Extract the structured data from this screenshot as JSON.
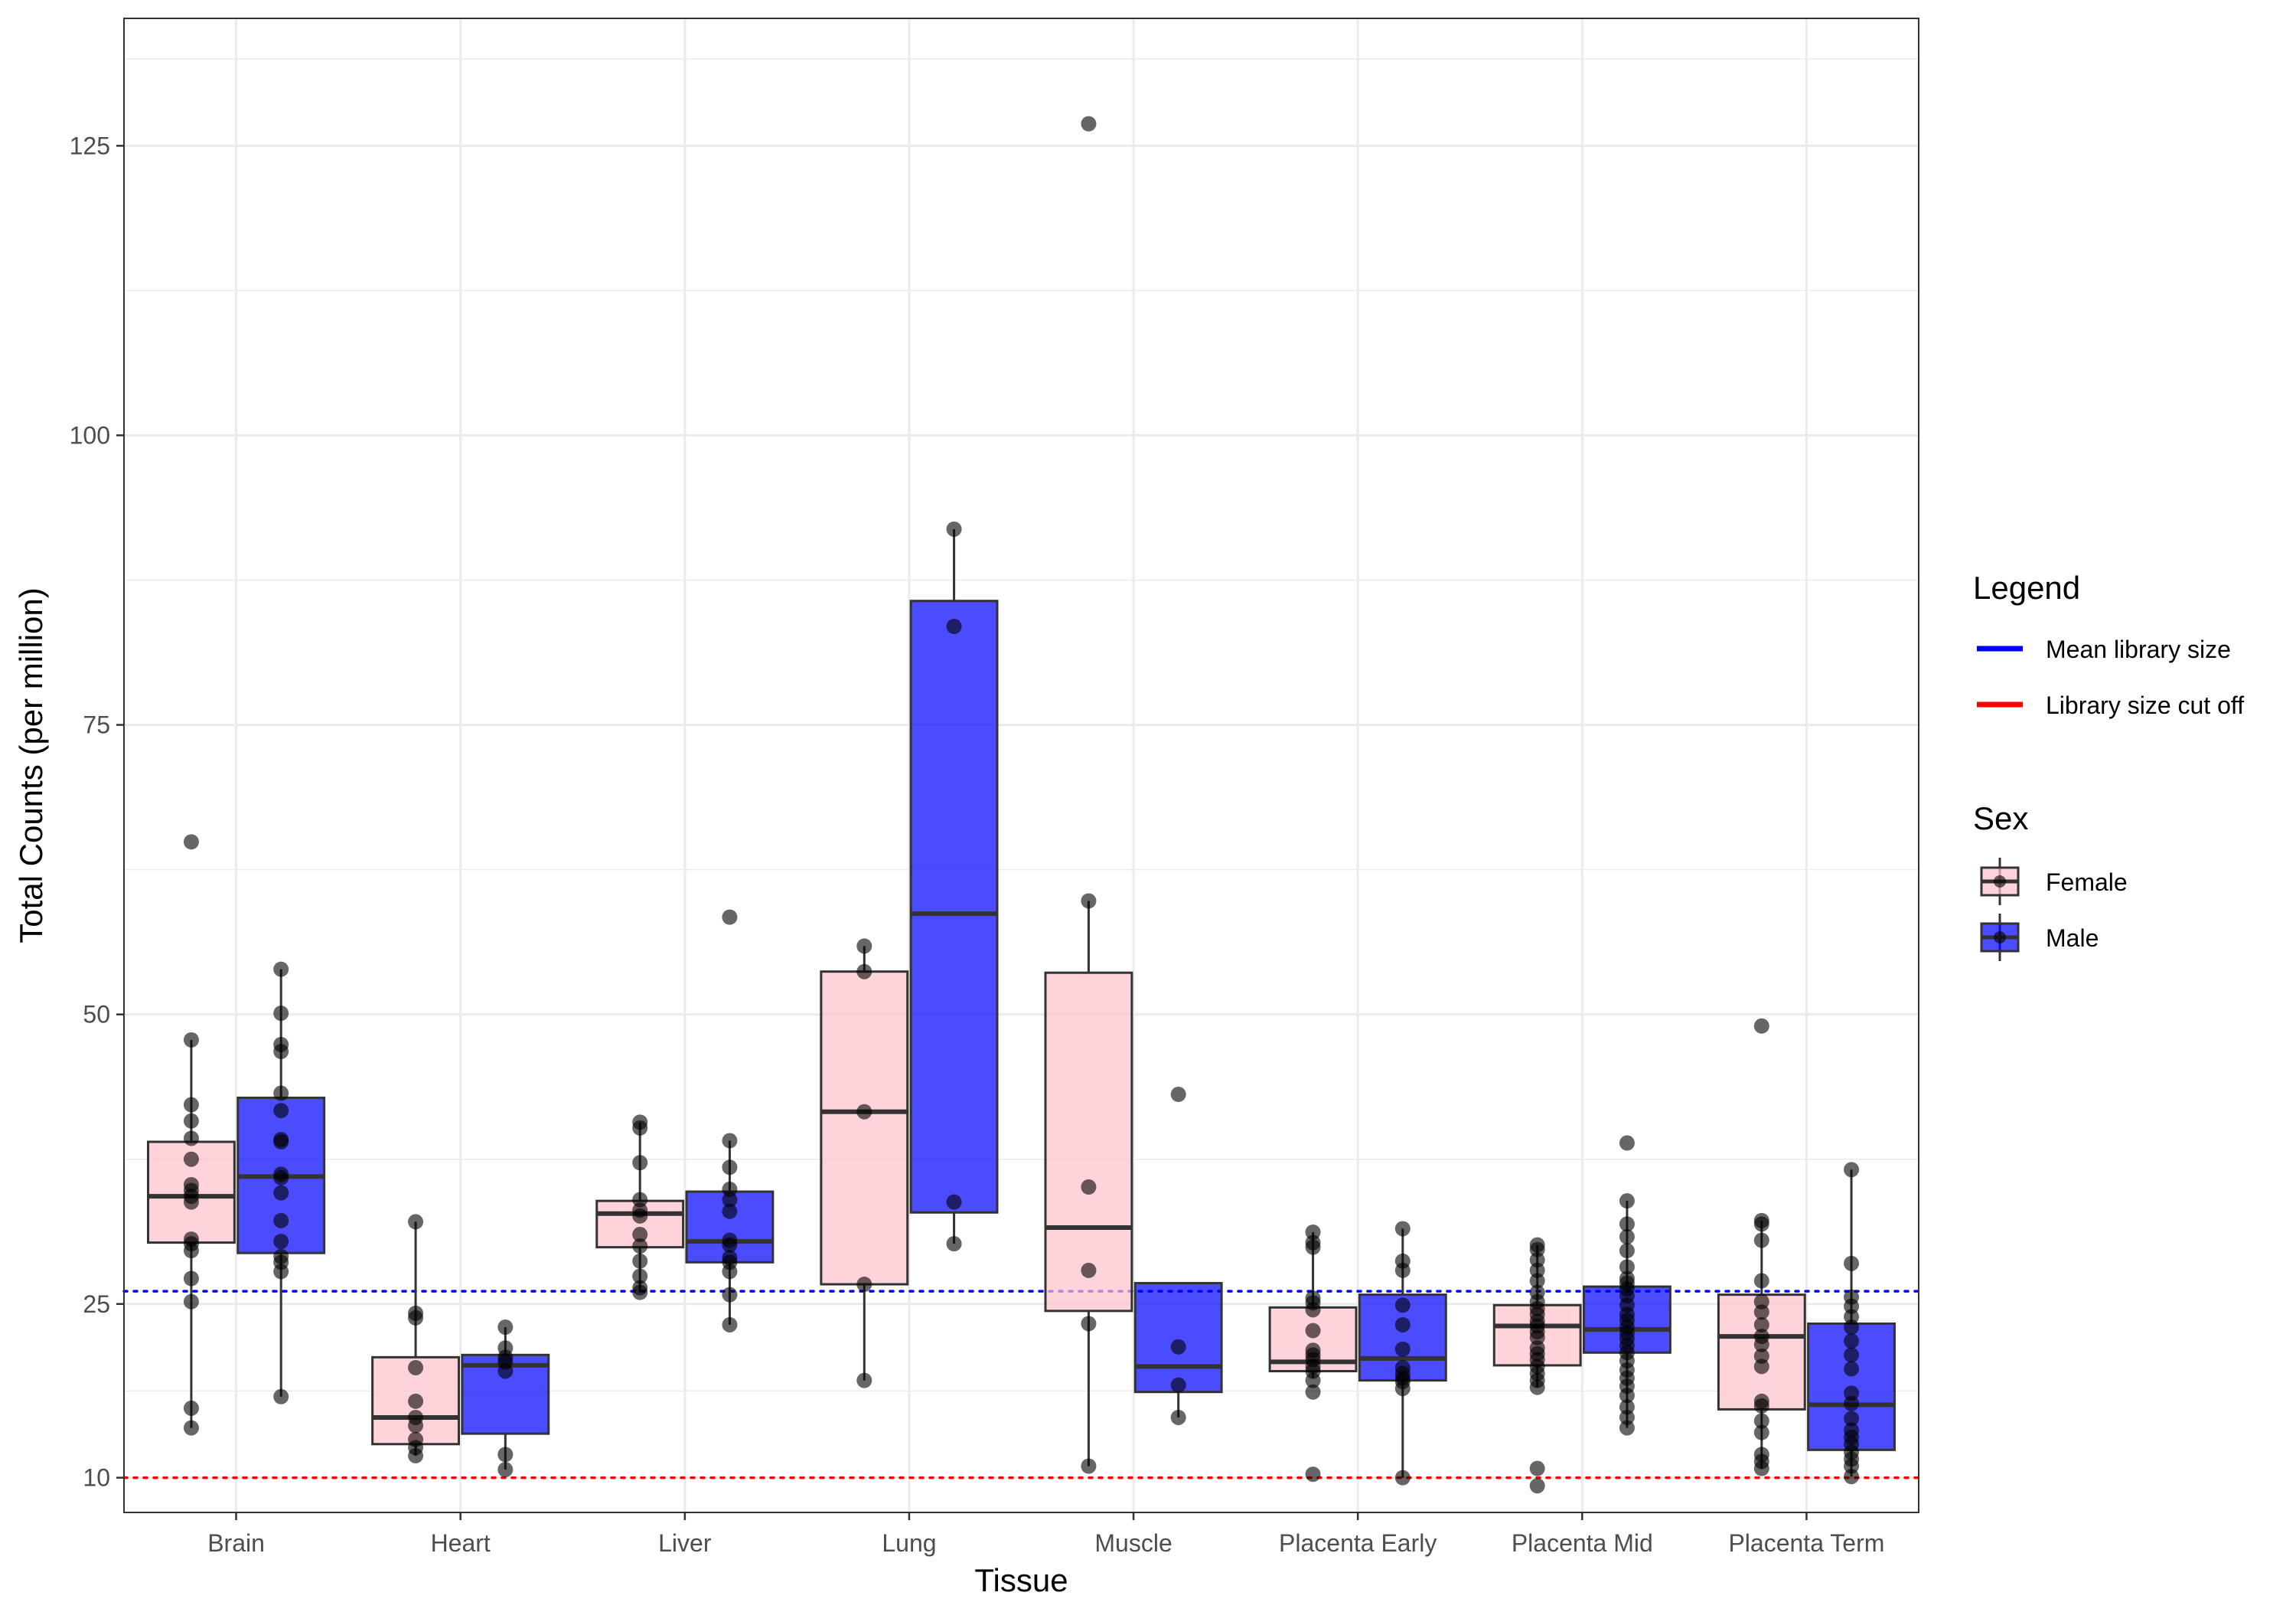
{
  "chart_data": {
    "type": "box",
    "title": "",
    "xlabel": "Tissue",
    "ylabel": "Total Counts (per million)",
    "ylim": [
      7,
      136
    ],
    "y_scale": "linear",
    "y_ticks": [
      10,
      25,
      50,
      75,
      100,
      125
    ],
    "grid": true,
    "legend_position": "right",
    "categories": [
      "Brain",
      "Heart",
      "Liver",
      "Lung",
      "Muscle",
      "Placenta Early",
      "Placenta Mid",
      "Placenta Term"
    ],
    "colors": {
      "Female": "#ffc0cb",
      "Male": "#0000ff",
      "Mean library size": "#0000ff",
      "Library size cut off": "#ff0000"
    },
    "reference_lines": [
      {
        "name": "Mean library size",
        "value": 26.1,
        "color": "#0000ff",
        "style": "dotted"
      },
      {
        "name": "Library size cut off",
        "value": 10,
        "color": "#ff0000",
        "style": "dotted"
      }
    ],
    "legend": {
      "lines_title": "Legend",
      "lines": [
        "Mean library size",
        "Library size cut off"
      ],
      "fill_title": "Sex",
      "fill": [
        "Female",
        "Male"
      ]
    },
    "series": [
      {
        "name": "Female",
        "color": "#ffc0cb",
        "boxes": [
          {
            "category": "Brain",
            "min": 14.3,
            "q1": 30.3,
            "median": 34.3,
            "q3": 39.0,
            "max": 47.8,
            "points": [
              64.9,
              47.8,
              42.2,
              40.8,
              39.3,
              37.5,
              35.3,
              34.8,
              34.3,
              33.8,
              30.6,
              30.2,
              29.6,
              27.2,
              25.2,
              16.0,
              14.3
            ]
          },
          {
            "category": "Heart",
            "min": 11.9,
            "q1": 12.9,
            "median": 15.2,
            "q3": 20.4,
            "max": 32.1,
            "points": [
              32.1,
              24.2,
              23.8,
              19.5,
              16.6,
              15.2,
              14.5,
              13.3,
              12.6,
              11.9
            ]
          },
          {
            "category": "Liver",
            "min": 26.0,
            "q1": 29.9,
            "median": 32.8,
            "q3": 33.9,
            "max": 40.7,
            "points": [
              40.7,
              40.2,
              37.2,
              34.0,
              33.1,
              32.6,
              31.0,
              30.0,
              28.7,
              27.4,
              26.4,
              26.0
            ]
          },
          {
            "category": "Lung",
            "min": 18.4,
            "q1": 26.7,
            "median": 41.6,
            "q3": 53.7,
            "max": 55.9,
            "points": [
              55.9,
              53.7,
              41.6,
              26.7,
              18.4
            ]
          },
          {
            "category": "Muscle",
            "min": 11.0,
            "q1": 24.4,
            "median": 31.6,
            "q3": 53.6,
            "max": 59.8,
            "points": [
              126.9,
              59.8,
              35.1,
              27.9,
              23.3,
              11.0
            ]
          },
          {
            "category": "Placenta Early",
            "min": 18.6,
            "q1": 19.2,
            "median": 20.0,
            "q3": 24.7,
            "max": 31.2,
            "points": [
              31.2,
              30.3,
              29.9,
              25.5,
              25.1,
              24.5,
              22.7,
              21.0,
              20.6,
              20.2,
              19.6,
              19.2,
              18.4,
              17.4,
              10.3
            ]
          },
          {
            "category": "Placenta Mid",
            "min": 17.8,
            "q1": 19.7,
            "median": 23.1,
            "q3": 24.9,
            "max": 30.1,
            "points": [
              30.1,
              29.7,
              28.8,
              27.9,
              27.0,
              26.0,
              25.2,
              24.6,
              24.1,
              23.5,
              23.1,
              22.6,
              22.1,
              21.2,
              20.7,
              20.2,
              19.6,
              19.0,
              18.4,
              17.8,
              10.8,
              9.3
            ]
          },
          {
            "category": "Placenta Term",
            "min": 10.8,
            "q1": 15.9,
            "median": 22.2,
            "q3": 25.8,
            "max": 32.2,
            "points": [
              49.0,
              32.2,
              31.9,
              30.5,
              27.0,
              25.2,
              24.3,
              23.2,
              22.2,
              21.5,
              20.5,
              19.6,
              16.6,
              16.2,
              14.9,
              13.9,
              12.0,
              11.4,
              10.8
            ]
          }
        ]
      },
      {
        "name": "Male",
        "color": "#0000ff",
        "boxes": [
          {
            "category": "Brain",
            "min": 17.0,
            "q1": 29.4,
            "median": 36.0,
            "q3": 42.8,
            "max": 53.9,
            "points": [
              53.9,
              50.1,
              47.4,
              46.8,
              43.2,
              41.7,
              39.2,
              39.0,
              36.2,
              35.9,
              34.6,
              32.2,
              30.4,
              29.1,
              28.6,
              27.8,
              17.0
            ]
          },
          {
            "category": "Heart",
            "min": 10.7,
            "q1": 13.8,
            "median": 19.7,
            "q3": 20.6,
            "max": 23.0,
            "points": [
              23.0,
              21.2,
              20.4,
              20.0,
              19.2,
              12.0,
              10.7
            ]
          },
          {
            "category": "Liver",
            "min": 23.2,
            "q1": 28.6,
            "median": 30.4,
            "q3": 34.7,
            "max": 39.1,
            "points": [
              58.4,
              39.1,
              36.8,
              34.9,
              34.0,
              33.0,
              30.5,
              30.1,
              29.0,
              28.6,
              27.8,
              25.8,
              23.2
            ]
          },
          {
            "category": "Lung",
            "min": 30.2,
            "q1": 32.9,
            "median": 58.7,
            "q3": 85.7,
            "max": 91.9,
            "points": [
              91.9,
              83.5,
              33.8,
              30.2
            ]
          },
          {
            "category": "Muscle",
            "min": 15.2,
            "q1": 17.4,
            "median": 19.6,
            "q3": 26.8,
            "max": 26.8,
            "points": [
              43.1,
              21.3,
              18.0,
              15.2
            ]
          },
          {
            "category": "Placenta Early",
            "min": 10.0,
            "q1": 18.4,
            "median": 20.3,
            "q3": 25.8,
            "max": 31.5,
            "points": [
              31.5,
              28.7,
              27.9,
              24.9,
              23.2,
              21.1,
              19.5,
              19.0,
              18.6,
              18.3,
              17.7,
              10.0
            ]
          },
          {
            "category": "Placenta Mid",
            "min": 14.3,
            "q1": 20.8,
            "median": 22.8,
            "q3": 26.5,
            "max": 33.9,
            "points": [
              38.9,
              33.9,
              31.9,
              30.8,
              29.6,
              28.2,
              27.2,
              26.8,
              26.3,
              25.7,
              24.9,
              24.1,
              23.6,
              23.0,
              22.5,
              22.0,
              21.4,
              20.8,
              20.1,
              19.3,
              18.6,
              17.9,
              17.1,
              16.1,
              15.2,
              14.3
            ]
          },
          {
            "category": "Placenta Term",
            "min": 10.1,
            "q1": 12.4,
            "median": 16.3,
            "q3": 23.3,
            "max": 36.6,
            "points": [
              36.6,
              28.5,
              25.6,
              24.8,
              23.9,
              23.0,
              21.8,
              20.6,
              19.4,
              17.3,
              16.4,
              15.1,
              14.1,
              13.5,
              12.9,
              12.2,
              11.6,
              11.0,
              10.1
            ]
          }
        ]
      }
    ]
  }
}
